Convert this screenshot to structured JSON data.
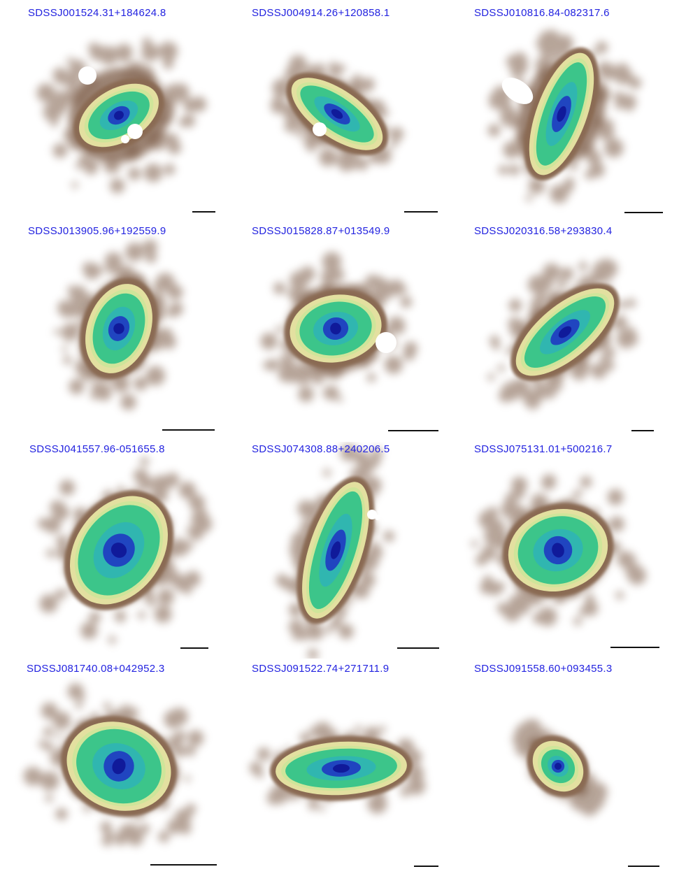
{
  "panels": [
    {
      "title": "SDSSJ001524.31+184624.8"
    },
    {
      "title": "SDSSJ004914.26+120858.1"
    },
    {
      "title": "SDSSJ010816.84-082317.6"
    },
    {
      "title": "SDSSJ013905.96+192559.9"
    },
    {
      "title": "SDSSJ015828.87+013549.9"
    },
    {
      "title": "SDSSJ020316.58+293830.4"
    },
    {
      "title": "SDSSJ041557.96-051655.8"
    },
    {
      "title": "SDSSJ074308.88+240206.5"
    },
    {
      "title": "SDSSJ075131.01+500216.7"
    },
    {
      "title": "SDSSJ081740.08+042952.3"
    },
    {
      "title": "SDSSJ091522.74+271711.9"
    },
    {
      "title": "SDSSJ091558.60+093455.3"
    }
  ],
  "colors": {
    "title_text": "#2323e0",
    "halo": "#7a5a45",
    "contour_brown": "#8a6a52",
    "yellow": "#e3e0a0",
    "green": "#3cc58a",
    "cyan": "#30b6b0",
    "blue": "#2045c0",
    "core": "#101a9a",
    "scale_bar": "#111111"
  }
}
